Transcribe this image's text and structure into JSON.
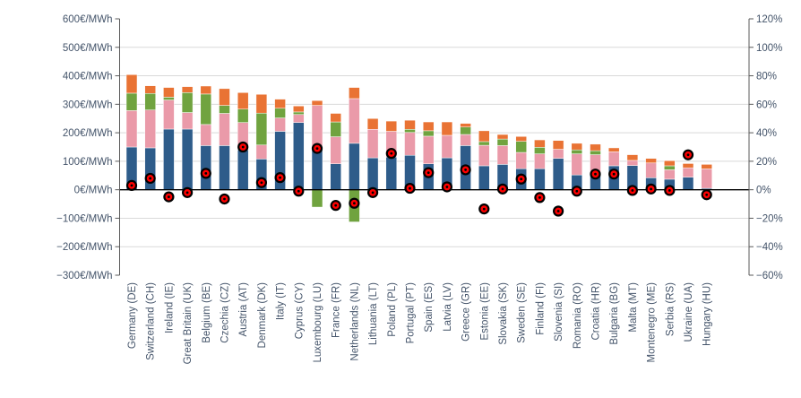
{
  "chart_data": {
    "type": "bar",
    "subtype": "stacked-bars-with-percent-dots",
    "title": "",
    "left_axis": {
      "unit": "€/MWh",
      "min": -300,
      "max": 600,
      "step": 100,
      "ticks": [
        "600€/MWh",
        "500€/MWh",
        "400€/MWh",
        "300€/MWh",
        "200€/MWh",
        "100€/MWh",
        "0€/MWh",
        "−100€/MWh",
        "−200€/MWh",
        "−300€/MWh"
      ]
    },
    "right_axis": {
      "unit": "%",
      "min": -60,
      "max": 120,
      "step": 20,
      "ticks": [
        "120%",
        "100%",
        "80%",
        "60%",
        "40%",
        "20%",
        "0%",
        "−20%",
        "−40%",
        "−60%"
      ]
    },
    "grid": true,
    "legend": "none",
    "categories": [
      "Germany (DE)",
      "Switzerland (CH)",
      "Ireland (IE)",
      "Great Britain (UK)",
      "Belgium (BE)",
      "Czechia (CZ)",
      "Austria (AT)",
      "Denmark (DK)",
      "Italy (IT)",
      "Cyprus (CY)",
      "Luxembourg (LU)",
      "France (FR)",
      "Netherlands (NL)",
      "Lithuania (LT)",
      "Poland (PL)",
      "Portugal (PT)",
      "Spain (ES)",
      "Latvia (LV)",
      "Greece (GR)",
      "Estonia (EE)",
      "Slovakia (SK)",
      "Sweden (SE)",
      "Finland (FI)",
      "Slovenia (SI)",
      "Romania (RO)",
      "Croatia (HR)",
      "Bulgaria (BG)",
      "Malta (MT)",
      "Montenegro (ME)",
      "Serbia (RS)",
      "Ukraine (UA)",
      "Hungary (HU)"
    ],
    "series": [
      {
        "name": "series-blue",
        "color": "#2E5C8A",
        "values": [
          150,
          147,
          213,
          213,
          155,
          155,
          140,
          108,
          205,
          236,
          149,
          91,
          163,
          112,
          115,
          121,
          91,
          112,
          155,
          84,
          89,
          74,
          74,
          110,
          52,
          60,
          84,
          85,
          42,
          37,
          44,
          5
        ]
      },
      {
        "name": "series-pink",
        "color": "#EA9AA9",
        "values": [
          128,
          133,
          102,
          58,
          74,
          113,
          96,
          49,
          47,
          28,
          147,
          95,
          157,
          100,
          90,
          80,
          97,
          79,
          39,
          72,
          66,
          57,
          52,
          32,
          74,
          63,
          49,
          18,
          52,
          33,
          33,
          68
        ]
      },
      {
        "name": "series-green",
        "color": "#70A33F",
        "values": [
          61,
          58,
          10,
          70,
          107,
          28,
          47,
          112,
          34,
          9,
          -61,
          52,
          -113,
          0,
          0,
          11,
          19,
          0,
          26,
          13,
          23,
          39,
          23,
          0,
          14,
          14,
          0,
          0,
          0,
          14,
          0,
          0
        ]
      },
      {
        "name": "series-orange",
        "color": "#E97334",
        "values": [
          65,
          27,
          34,
          21,
          28,
          59,
          58,
          66,
          32,
          21,
          17,
          30,
          39,
          38,
          36,
          32,
          31,
          47,
          13,
          38,
          16,
          17,
          26,
          31,
          23,
          23,
          14,
          20,
          16,
          18,
          15,
          16
        ]
      }
    ],
    "dot_series": {
      "name": "red-dot-percent",
      "axis": "right",
      "unit": "%",
      "fill": "#FF0000",
      "stroke": "#000000",
      "values": [
        3,
        8,
        -5,
        -2,
        11.5,
        -6.5,
        30,
        5,
        8.5,
        -1,
        29,
        -11,
        -9.5,
        -2,
        25.5,
        1,
        12,
        2,
        14,
        -13.5,
        0.5,
        7.5,
        -5.5,
        -15,
        -1,
        11,
        11,
        -0.5,
        0.5,
        -0.5,
        24.5,
        -3.5
      ]
    },
    "colors": {
      "axis_text": "#44546A",
      "axis_line": "#595959",
      "gridline": "#D9D9D9",
      "zero_line": "#000000",
      "background": "#FFFFFF"
    }
  }
}
